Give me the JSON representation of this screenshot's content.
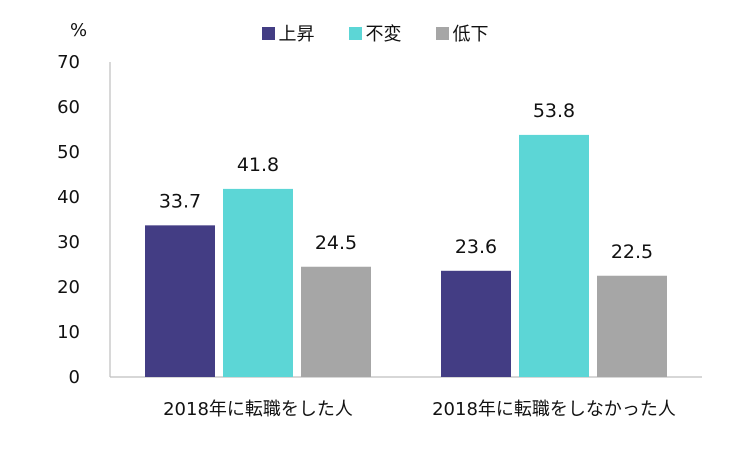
{
  "chart_data": {
    "type": "bar",
    "unit_label": "%",
    "categories": [
      "2018年に転職をした人",
      "2018年に転職をしなかった人"
    ],
    "series": [
      {
        "name": "上昇",
        "color": "#433d84",
        "values": [
          33.7,
          23.6
        ]
      },
      {
        "name": "不変",
        "color": "#5cd6d6",
        "values": [
          41.8,
          53.8
        ]
      },
      {
        "name": "低下",
        "color": "#a6a6a6",
        "values": [
          24.5,
          22.5
        ]
      }
    ],
    "ylim": [
      0,
      70
    ],
    "yticks": [
      0,
      10,
      20,
      30,
      40,
      50,
      60,
      70
    ],
    "legend_position": "top-center",
    "grid": false
  }
}
